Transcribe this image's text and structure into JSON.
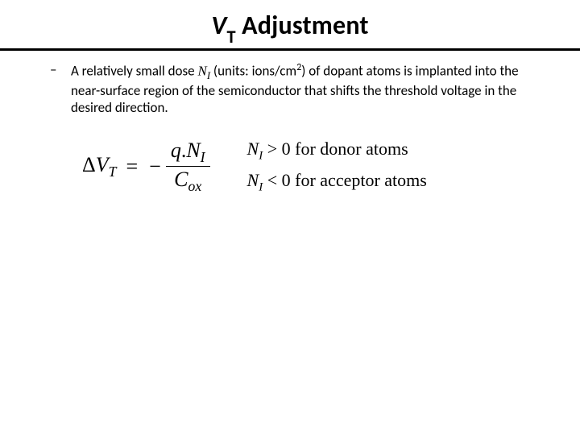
{
  "title": {
    "v": "V",
    "t": "T",
    "rest": " Adjustment"
  },
  "bullet": {
    "p1": "A relatively small dose ",
    "ni_main": "N",
    "ni_sub": "I",
    "p2": " (units: ions/cm",
    "sq": "2",
    "p3": ") of dopant atoms is implanted into the near-surface region of the semiconductor that shifts the threshold voltage in the desired direction."
  },
  "formula": {
    "delta": "Δ",
    "V": "V",
    "T": "T",
    "eq": "=",
    "minus": "−",
    "num_q": "q",
    "num_dot": ".",
    "num_N": "N",
    "num_I": "I",
    "den_C": "C",
    "den_ox": "ox"
  },
  "cond": {
    "line1_NI_N": "N",
    "line1_NI_I": "I",
    "line1_op": "> 0",
    "line1_txt": "  for donor atoms",
    "line2_NI_N": "N",
    "line2_NI_I": "I",
    "line2_op": "< 0",
    "line2_txt": "  for acceptor atoms"
  }
}
